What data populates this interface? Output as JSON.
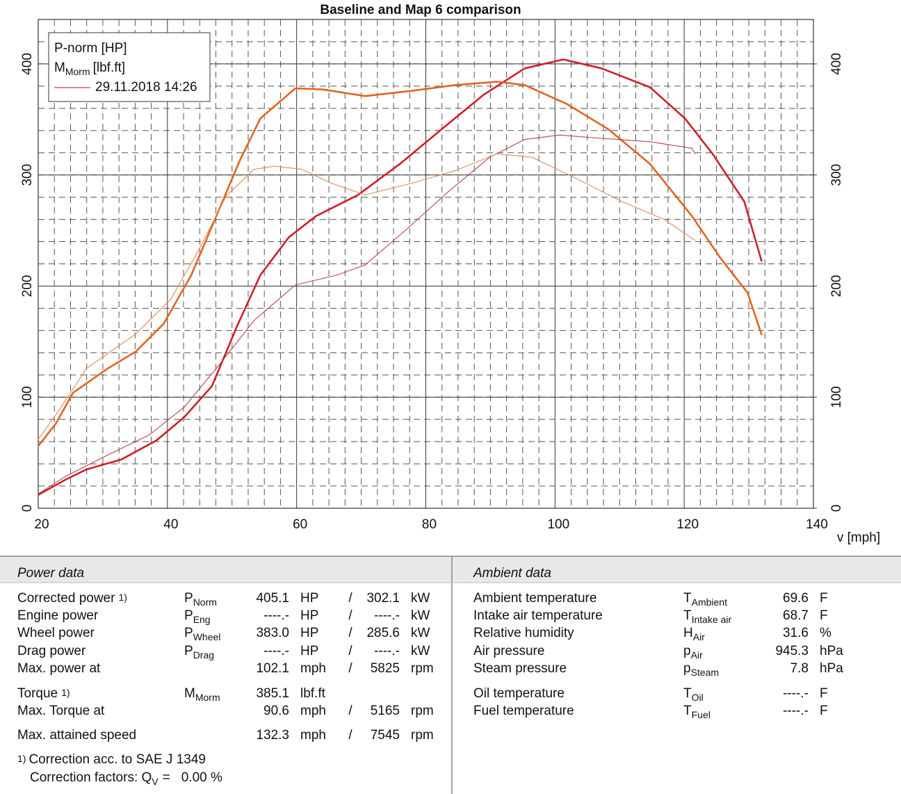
{
  "chart_data": {
    "type": "line",
    "title": "Baseline and Map 6 comparison",
    "x_label": "v [mph]",
    "xlim": [
      20,
      140
    ],
    "xticks": [
      20,
      40,
      60,
      80,
      100,
      120,
      140
    ],
    "ylim": [
      0,
      440
    ],
    "yticks": [
      0,
      100,
      200,
      300,
      400
    ],
    "y2lim": [
      0,
      440
    ],
    "y2ticks": [
      0,
      100,
      200,
      300,
      400
    ],
    "y2_color": "#e0641e",
    "grid": true,
    "legend": [
      {
        "label": "P-norm [HP]",
        "color": "#d42020"
      },
      {
        "label": "M",
        "sub": "Morm",
        "suffix": "[lbf.ft]",
        "color": "#e0641e"
      },
      {
        "label": "29.11.2018 14:26",
        "color": "#d42020",
        "line_color": "#b84050"
      }
    ],
    "series": [
      {
        "color": "#cc1f28",
        "width": 2.6,
        "x": [
          20,
          24.3,
          27.5,
          32.9,
          38.3,
          42.6,
          46.9,
          50.7,
          54.4,
          58.8,
          63,
          69.5,
          76,
          82.4,
          88.9,
          95.3,
          101.3,
          107.2,
          114.7,
          120.1,
          124.4,
          129.3,
          132
        ],
        "values": [
          12,
          26,
          35,
          44,
          61,
          82,
          110,
          163,
          210,
          244,
          263,
          282,
          310,
          341,
          372,
          396,
          404,
          396,
          379,
          351,
          319,
          276,
          222
        ]
      },
      {
        "color": "#e0641e",
        "width": 2.6,
        "axis": "y2",
        "x": [
          20,
          22.7,
          25.4,
          30.8,
          35.1,
          39.4,
          43.7,
          48,
          51.2,
          54.4,
          59.8,
          64.1,
          70.6,
          78.1,
          84.6,
          91,
          95.3,
          101.8,
          108.3,
          114.7,
          121.2,
          125.5,
          129.8,
          132
        ],
        "values": [
          56,
          76,
          104,
          126,
          141,
          166,
          210,
          269,
          313,
          351,
          378,
          377,
          371,
          376,
          381,
          384,
          381,
          364,
          341,
          310,
          263,
          226,
          194,
          156
        ]
      },
      {
        "color": "#b84050",
        "width": 1.1,
        "x": [
          20,
          24.3,
          30.8,
          37.2,
          42.6,
          48,
          53.4,
          59.8,
          66.3,
          70.6,
          77,
          83.5,
          89.9,
          95.3,
          100.7,
          107.2,
          114.7,
          121.2,
          121.7
        ],
        "values": [
          13,
          29,
          48,
          66,
          91,
          129,
          169,
          201,
          210,
          219,
          251,
          285,
          316,
          332,
          336,
          333,
          330,
          324,
          319
        ]
      },
      {
        "color": "#e08a55",
        "width": 1.1,
        "axis": "y2",
        "x": [
          20,
          23.2,
          27.5,
          35.1,
          40.5,
          44.8,
          49.1,
          53.4,
          56.6,
          60.9,
          65.2,
          70.6,
          78.1,
          84.6,
          91,
          96.4,
          102.9,
          110.4,
          116.9,
          121.7
        ],
        "values": [
          62,
          88,
          126,
          157,
          188,
          232,
          281,
          305,
          308,
          305,
          293,
          282,
          293,
          304,
          319,
          316,
          298,
          276,
          260,
          241
        ]
      }
    ]
  },
  "power_data": {
    "title": "Power data",
    "rows": [
      {
        "label": "Corrected power",
        "note": "1)",
        "symbol": "P",
        "sub": "Norm",
        "value": "405.1",
        "unit": "HP",
        "sep": "/",
        "value2": "302.1",
        "unit2": "kW",
        "color": "#d42020"
      },
      {
        "label": "Engine power",
        "symbol": "P",
        "sub": "Eng",
        "value": "----.-",
        "unit": "HP",
        "sep": "/",
        "value2": "----.-",
        "unit2": "kW",
        "color": "#d42020"
      },
      {
        "label": "Wheel power",
        "symbol": "P",
        "sub": "Wheel",
        "value": "383.0",
        "unit": "HP",
        "sep": "/",
        "value2": "285.6",
        "unit2": "kW",
        "color": "#1c1ca8"
      },
      {
        "label": "Drag power",
        "symbol": "P",
        "sub": "Drag",
        "value": "----.-",
        "unit": "HP",
        "sep": "/",
        "value2": "----.-",
        "unit2": "kW",
        "color": "#1a8a1a"
      },
      {
        "label": "Max. power at",
        "value": "102.1",
        "unit": "mph",
        "sep": "/",
        "value2": "5825",
        "unit2": "rpm",
        "color": "#111111",
        "color2": "#8a8a8a"
      },
      {
        "label": "Torque",
        "note": "1)",
        "symbol": "M",
        "sub": "Morm",
        "value": "385.1",
        "unit": "lbf.ft",
        "color": "#e0641e"
      },
      {
        "label": "Max. Torque at",
        "value": "90.6",
        "unit": "mph",
        "sep": "/",
        "value2": "5165",
        "unit2": "rpm",
        "color": "#111111",
        "color2": "#8a8a8a"
      },
      {
        "label": "Max. attained speed",
        "value": "132.3",
        "unit": "mph",
        "sep": "/",
        "value2": "7545",
        "unit2": "rpm",
        "color": "#111111",
        "color2": "#8a8a8a"
      }
    ],
    "footnote": {
      "mark": "1)",
      "text": "Correction acc. to SAE J 1349",
      "factors": "Correction factors: Q",
      "sub": "V",
      "eq": "=",
      "value": "0.00 %",
      "color": "#d42020"
    }
  },
  "ambient_data": {
    "title": "Ambient data",
    "rows": [
      {
        "label": "Ambient temperature",
        "symbol": "T",
        "sub": "Ambient",
        "value": "69.6",
        "unit": "F"
      },
      {
        "label": "Intake air temperature",
        "symbol": "T",
        "sub": "Intake air",
        "value": "68.7",
        "unit": "F"
      },
      {
        "label": "Relative humidity",
        "symbol": "H",
        "sub": "Air",
        "value": "31.6",
        "unit": "%"
      },
      {
        "label": "Air pressure",
        "symbol": "p",
        "sub": "Air",
        "value": "945.3",
        "unit": "hPa"
      },
      {
        "label": "Steam pressure",
        "symbol": "p",
        "sub": "Steam",
        "value": "7.8",
        "unit": "hPa"
      },
      {
        "label": "Oil temperature",
        "symbol": "T",
        "sub": "Oil",
        "value": "----.-",
        "unit": "F"
      },
      {
        "label": "Fuel temperature",
        "symbol": "T",
        "sub": "Fuel",
        "value": "----.-",
        "unit": "F"
      }
    ]
  }
}
